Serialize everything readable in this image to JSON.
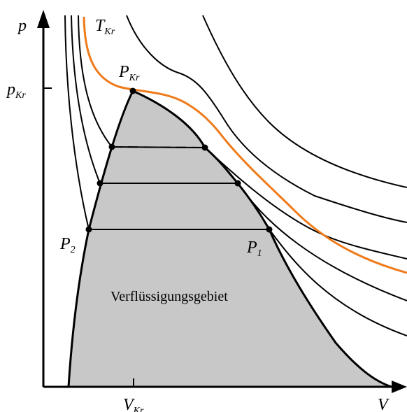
{
  "axes": {
    "y_label": "p",
    "x_label": "V",
    "y_tick": {
      "main": "p",
      "sub": "Kr"
    },
    "x_tick": {
      "main": "V",
      "sub": "Kr"
    }
  },
  "labels": {
    "critical_isotherm": {
      "main": "T",
      "sub": "Kr"
    },
    "critical_point": {
      "main": "P",
      "sub": "Kr"
    },
    "point_1": {
      "main": "P",
      "sub": "1"
    },
    "point_2": {
      "main": "P",
      "sub": "2"
    },
    "region": "Verflüssigungsgebiet"
  },
  "colors": {
    "critical_isotherm": "#ef7a1a",
    "coexistence_region": "#c8c8c8",
    "lines": "#000000"
  }
}
